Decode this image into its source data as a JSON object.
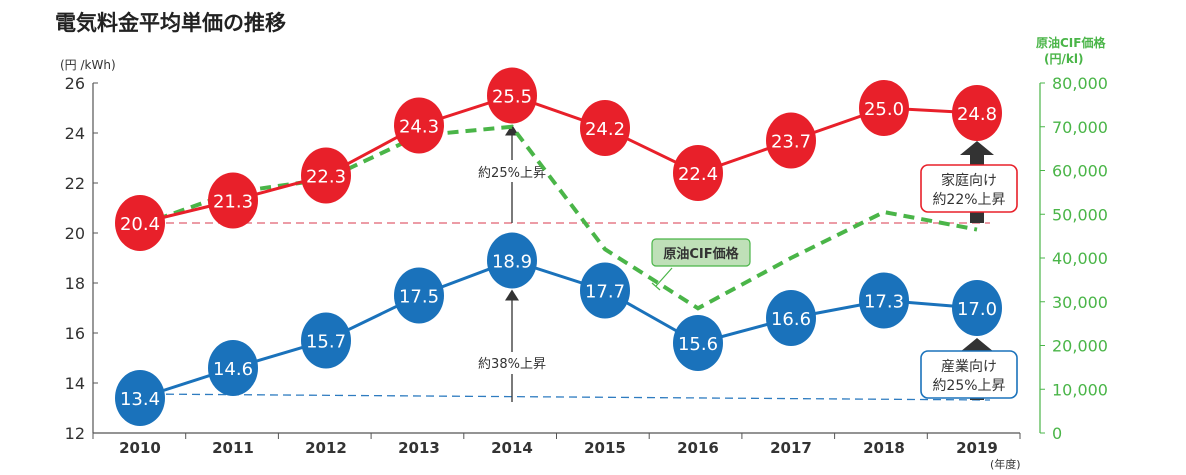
{
  "chart_data": {
    "type": "line",
    "title": "電気料金平均単価の推移",
    "ylabel": "(円 /kWh)",
    "y2label_line1": "原油CIF価格",
    "y2label_line2": "(円/kl)",
    "xlabel": "(年度)",
    "ylim": [
      12,
      26
    ],
    "yticks": [
      "12",
      "14",
      "16",
      "18",
      "20",
      "22",
      "24",
      "26"
    ],
    "y2lim": [
      0,
      80000
    ],
    "y2ticks": [
      "0",
      "10,000",
      "20,000",
      "30,000",
      "40,000",
      "50,000",
      "60,000",
      "70,000",
      "80,000"
    ],
    "categories": [
      "2010",
      "2011",
      "2012",
      "2013",
      "2014",
      "2015",
      "2016",
      "2017",
      "2018",
      "2019"
    ],
    "series": [
      {
        "name": "家庭向け",
        "axis": "left",
        "color": "#e8202a",
        "values": [
          20.4,
          21.3,
          22.3,
          24.3,
          25.5,
          24.2,
          22.4,
          23.7,
          25.0,
          24.8
        ]
      },
      {
        "name": "産業向け",
        "axis": "left",
        "color": "#1a72bb",
        "values": [
          13.4,
          14.6,
          15.7,
          17.5,
          18.9,
          17.7,
          15.6,
          16.6,
          17.3,
          17.0
        ]
      },
      {
        "name": "原油CIF価格",
        "axis": "right",
        "color": "#4ab548",
        "values": [
          47500,
          55000,
          58000,
          68000,
          70000,
          42000,
          28500,
          40000,
          50500,
          46500
        ]
      }
    ],
    "annotations": {
      "red_2014": "約25%上昇",
      "blue_2014": "約38%上昇",
      "red_box_line1": "家庭向け",
      "red_box_line2": "約22%上昇",
      "blue_box_line1": "産業向け",
      "blue_box_line2": "約25%上昇",
      "oil_label": "原油CIF価格"
    }
  }
}
